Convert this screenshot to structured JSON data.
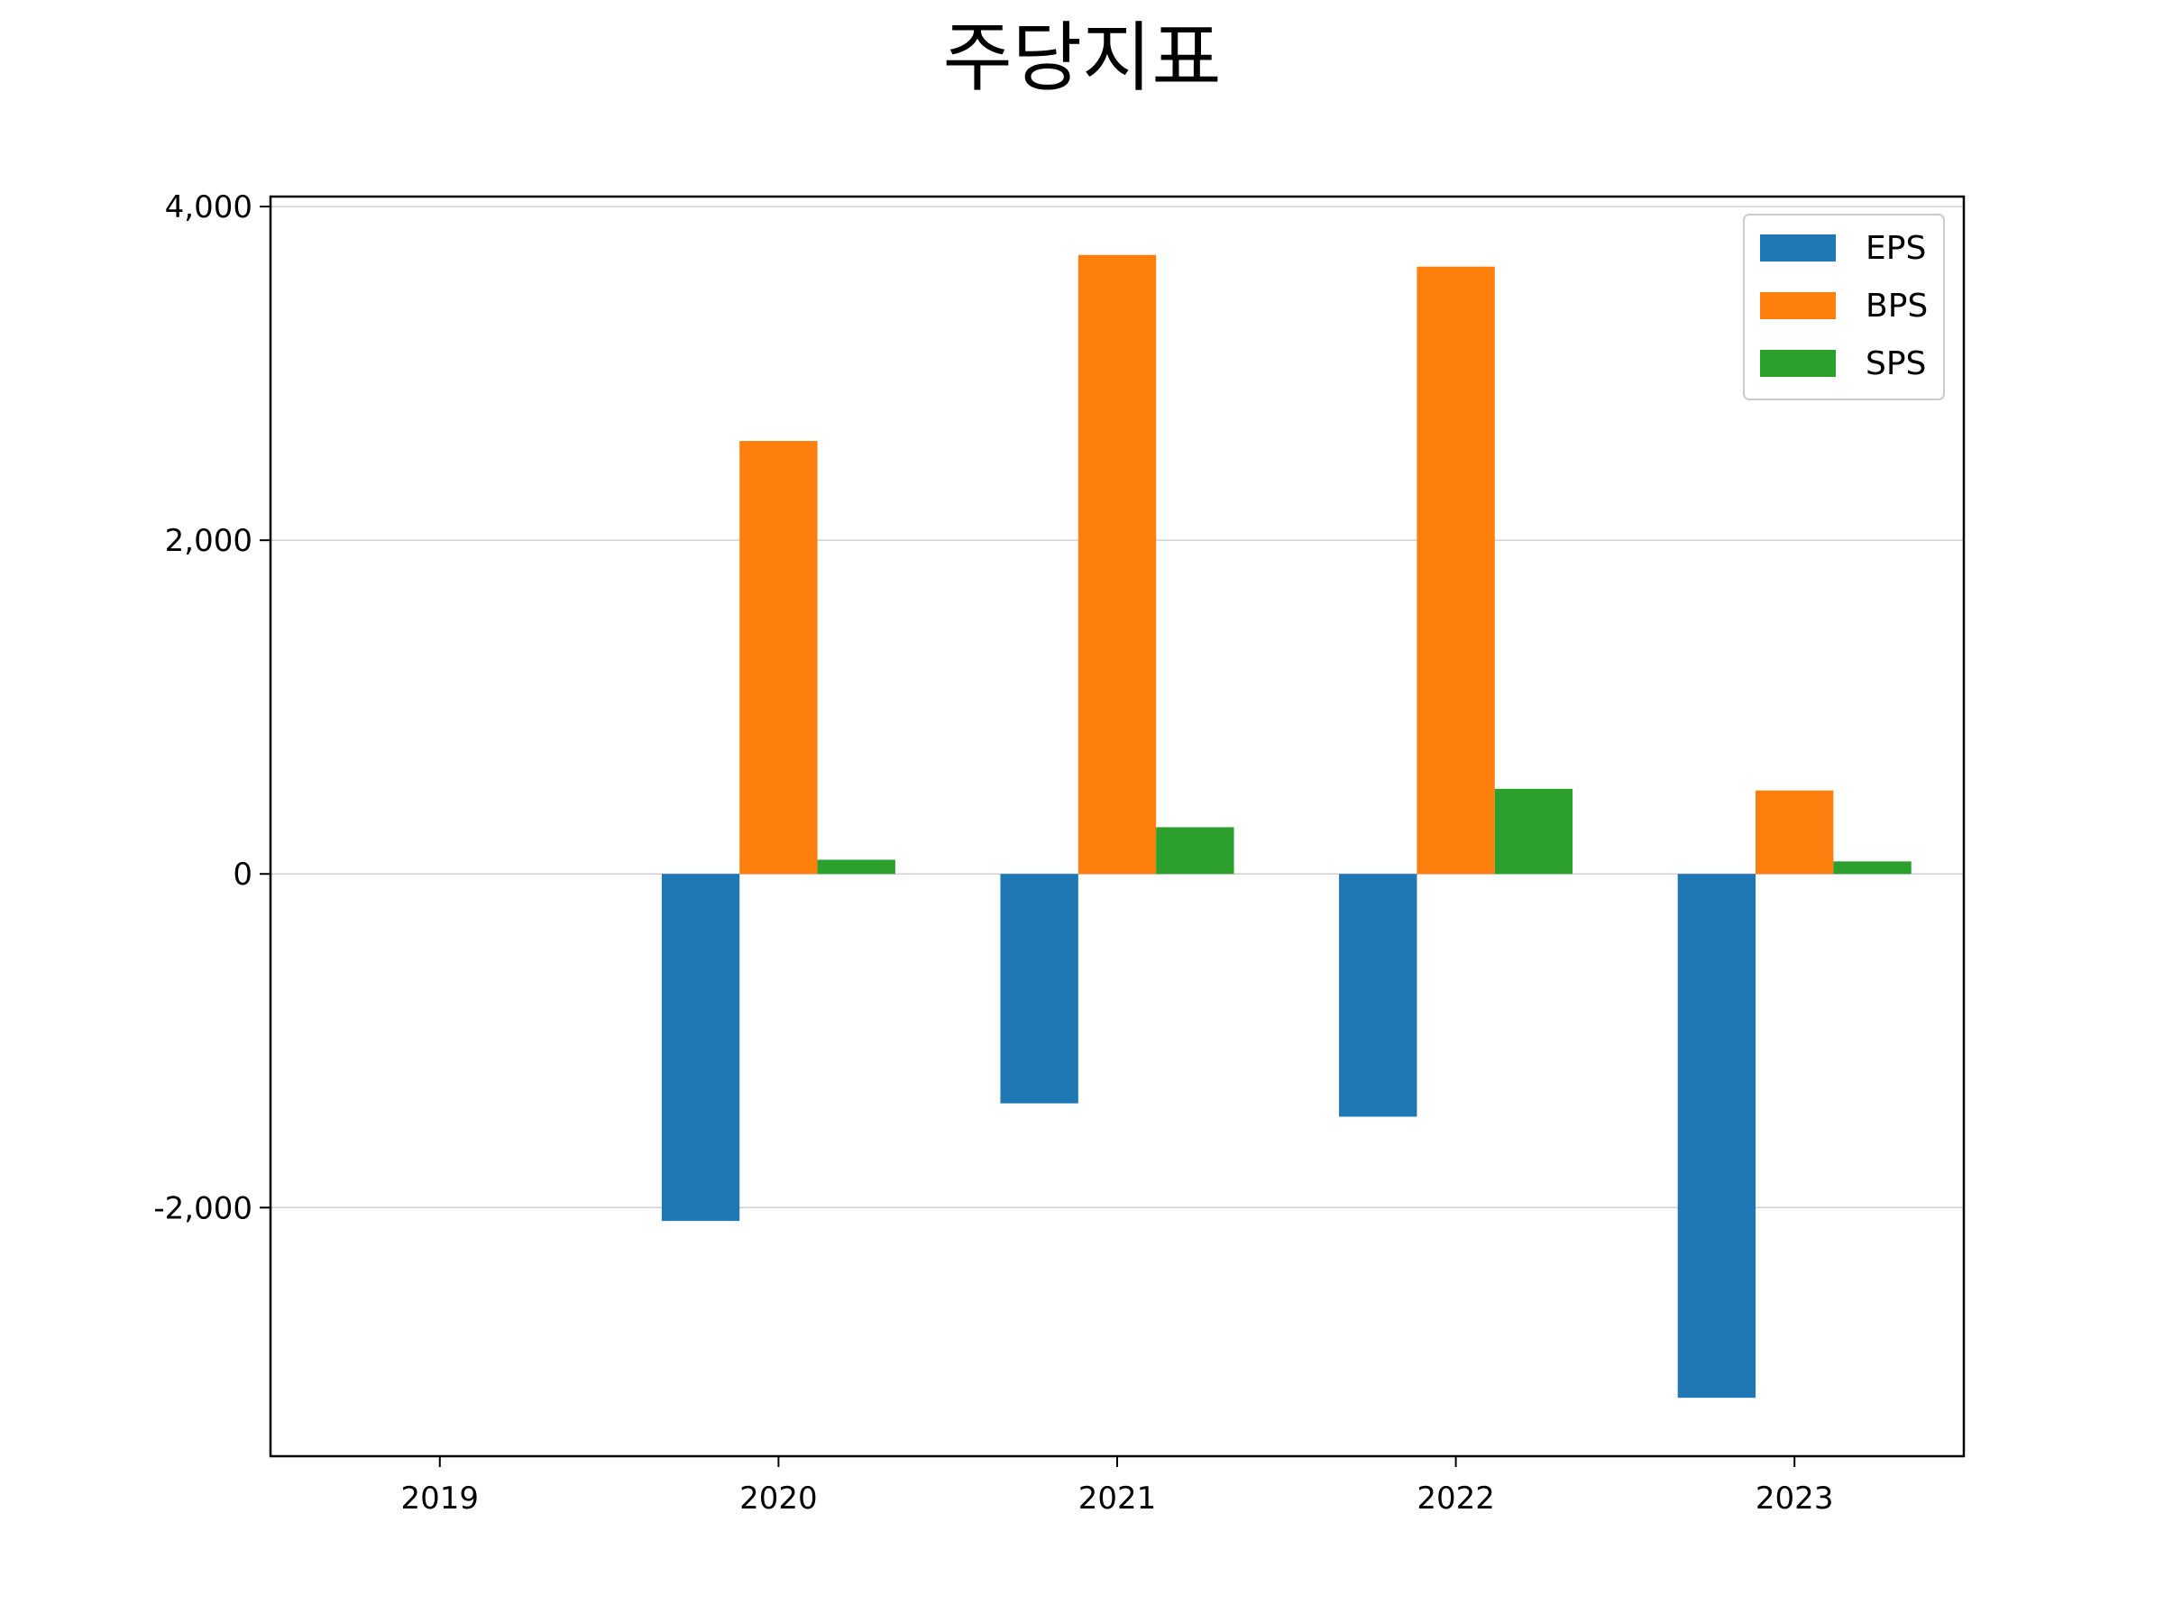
{
  "chart_data": {
    "type": "bar",
    "title": "주당지표",
    "xlabel": "",
    "ylabel": "",
    "categories": [
      "2019",
      "2020",
      "2021",
      "2022",
      "2023"
    ],
    "series": [
      {
        "name": "EPS",
        "color": "#1f77b4",
        "values": [
          null,
          -2080,
          -1375,
          -1455,
          -3140
        ]
      },
      {
        "name": "BPS",
        "color": "#ff7f0e",
        "values": [
          null,
          2595,
          3710,
          3640,
          500
        ]
      },
      {
        "name": "SPS",
        "color": "#2ca02c",
        "values": [
          null,
          85,
          280,
          510,
          75
        ]
      }
    ],
    "ylim": [
      -3490,
      4060
    ],
    "yticks": [
      -2000,
      0,
      2000,
      4000
    ],
    "ytick_labels": [
      "-2,000",
      "0",
      "2,000",
      "4,000"
    ],
    "grid": "horizontal",
    "legend_position": "top-right"
  }
}
